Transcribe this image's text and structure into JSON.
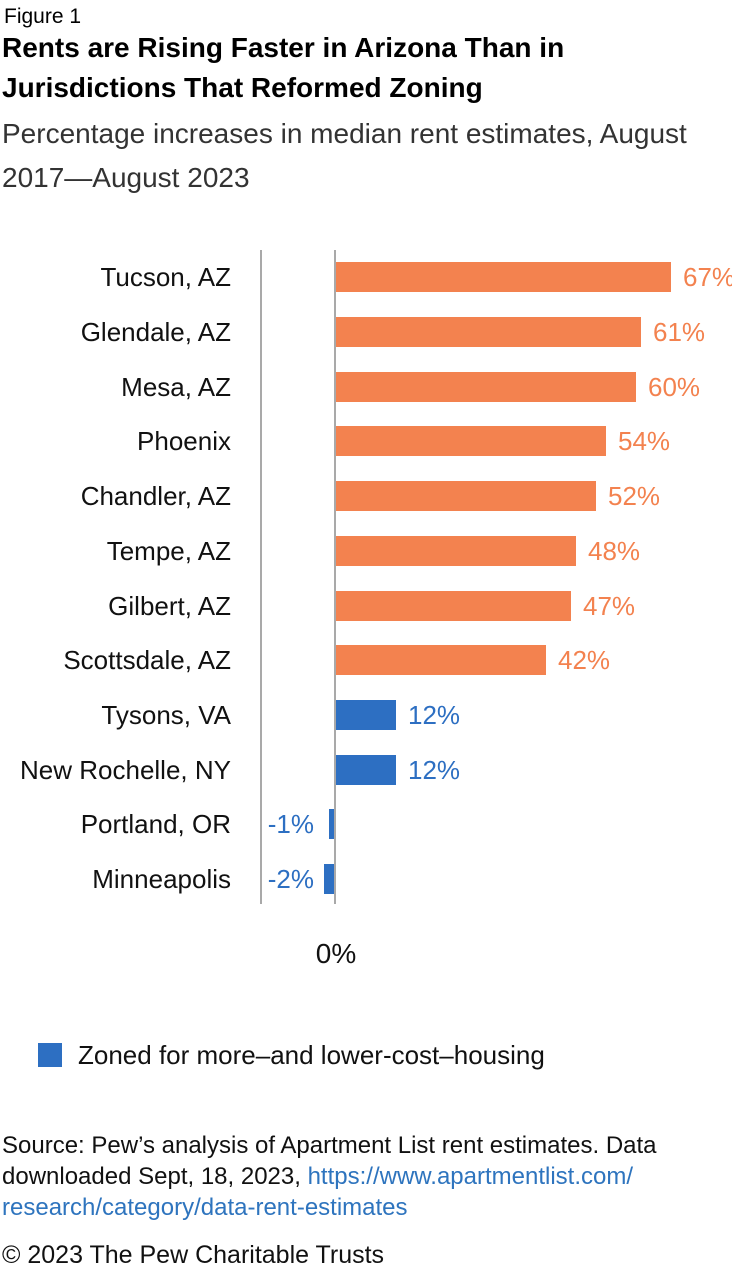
{
  "page": {
    "figure_label": "Figure 1",
    "title": "Rents are Rising Faster in Arizona Than in Jurisdictions That Reformed Zoning",
    "subtitle": "Percentage increases in median rent estimates, August 2017—August 2023",
    "footer": "© 2023 The Pew Charitable Trusts"
  },
  "chart_data": {
    "type": "bar",
    "orientation": "horizontal",
    "title": "Rents are Rising Faster in Arizona Than in Jurisdictions That Reformed Zoning",
    "subtitle": "Percentage increases in median rent estimates, August 2017—August 2023",
    "categories": [
      "Tucson, AZ",
      "Glendale, AZ",
      "Mesa, AZ",
      "Phoenix",
      "Chandler, AZ",
      "Tempe, AZ",
      "Gilbert, AZ",
      "Scottsdale, AZ",
      "Tysons, VA",
      "New Rochelle, NY",
      "Portland, OR",
      "Minneapolis"
    ],
    "values": [
      67,
      61,
      60,
      54,
      52,
      48,
      47,
      42,
      12,
      12,
      -1,
      -2
    ],
    "value_labels": [
      "67%",
      "61%",
      "60%",
      "54%",
      "52%",
      "48%",
      "47%",
      "42%",
      "12%",
      "12%",
      "-1%",
      "-2%"
    ],
    "groups": [
      "arizona",
      "arizona",
      "arizona",
      "arizona",
      "arizona",
      "arizona",
      "arizona",
      "arizona",
      "zoned",
      "zoned",
      "zoned",
      "zoned"
    ],
    "colors": {
      "arizona": "#F3824F",
      "zoned": "#2D6FC2",
      "axis_gray": "#A9A9A9"
    },
    "xlim": [
      -2,
      67
    ],
    "zero_tick_label": "0%",
    "grid": false,
    "legend": {
      "position": "bottom",
      "label": "Zoned for more–and lower-cost–housing",
      "swatch_color": "#2D6FC2"
    }
  },
  "source": {
    "line1": "Source: Pew’s analysis of Apartment List rent estimates. Data",
    "line2_prefix": "downloaded Sept, 18, 2023, ",
    "line2_link": "https://www.apartmentlist.com/",
    "line3_link": "research/category/data-rent-estimates",
    "link_color": "#2E74BE"
  }
}
